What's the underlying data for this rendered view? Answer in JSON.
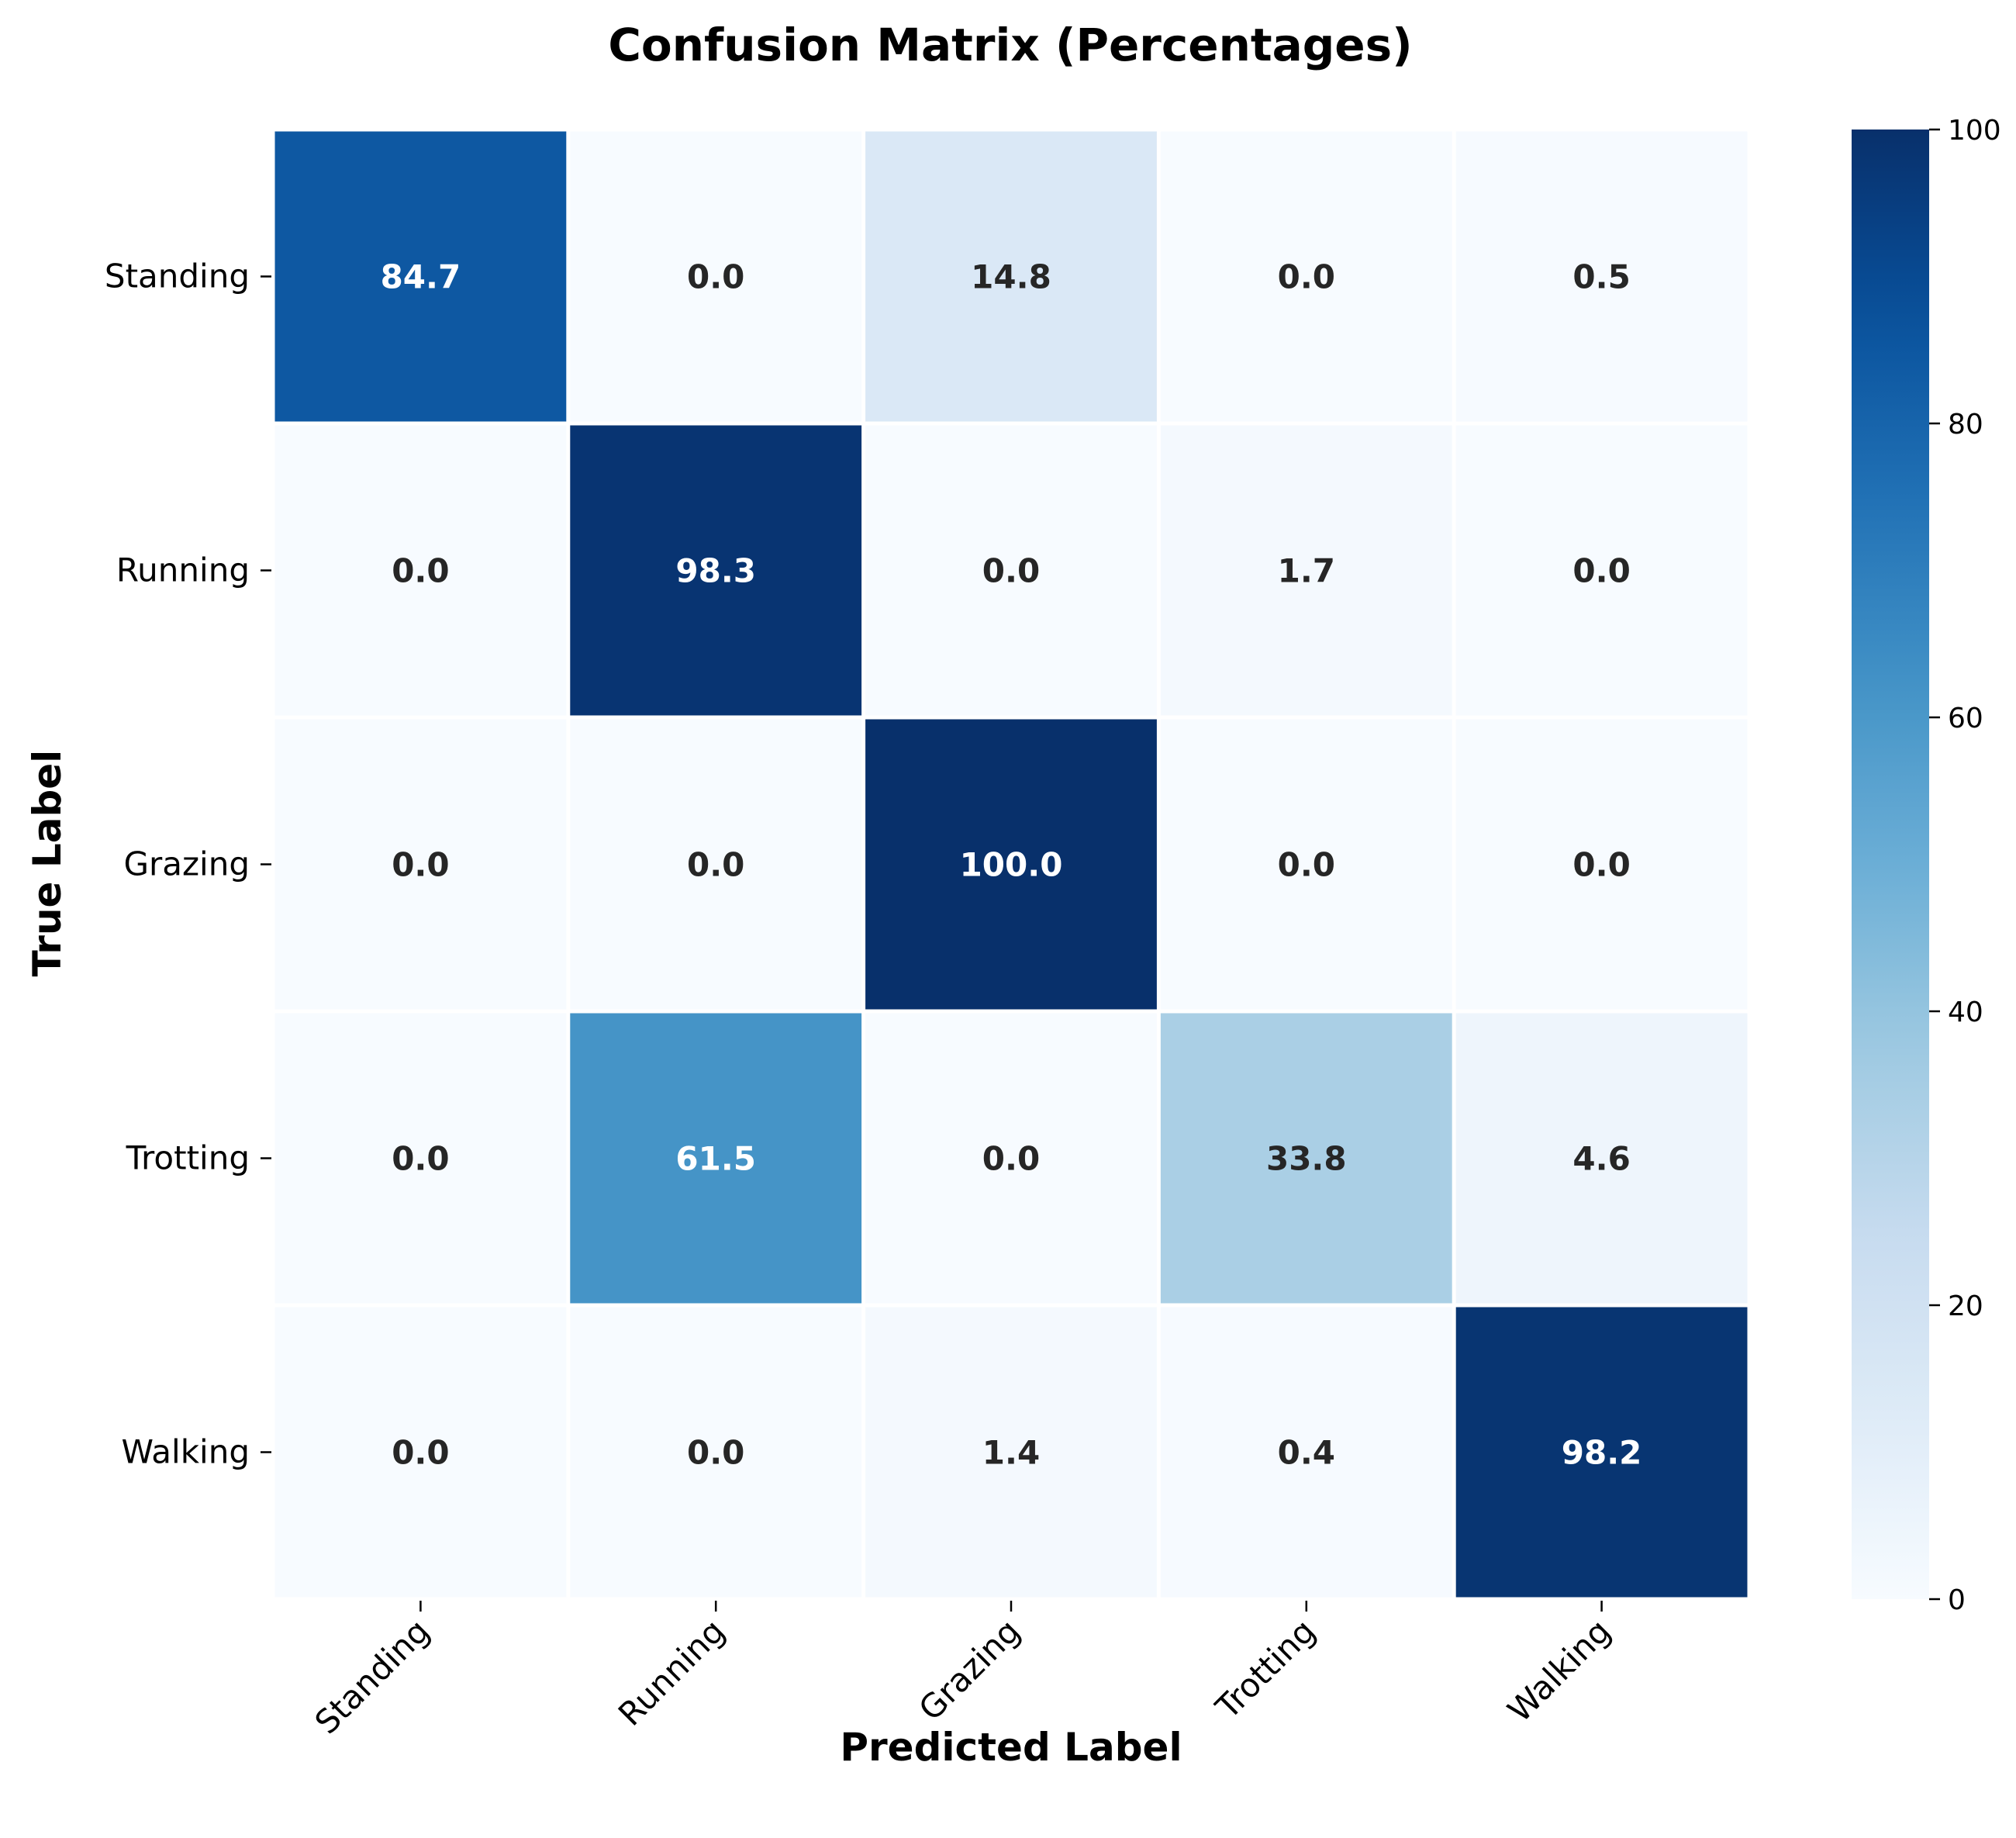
{
  "chart_data": {
    "type": "heatmap",
    "title": "Confusion Matrix (Percentages)",
    "xlabel": "Predicted Label",
    "ylabel": "True Label",
    "x_categories": [
      "Standing",
      "Running",
      "Grazing",
      "Trotting",
      "Walking"
    ],
    "y_categories": [
      "Standing",
      "Running",
      "Grazing",
      "Trotting",
      "Walking"
    ],
    "values": [
      [
        84.7,
        0.0,
        14.8,
        0.0,
        0.5
      ],
      [
        0.0,
        98.3,
        0.0,
        1.7,
        0.0
      ],
      [
        0.0,
        0.0,
        100.0,
        0.0,
        0.0
      ],
      [
        0.0,
        61.5,
        0.0,
        33.8,
        4.6
      ],
      [
        0.0,
        0.0,
        1.4,
        0.4,
        98.2
      ]
    ],
    "colorbar": {
      "range": [
        0,
        100
      ],
      "ticks": [
        0,
        20,
        40,
        60,
        80,
        100
      ]
    },
    "colormap": "Blues",
    "value_format": "one decimal place",
    "grid": false,
    "legend": "colorbar at right"
  }
}
